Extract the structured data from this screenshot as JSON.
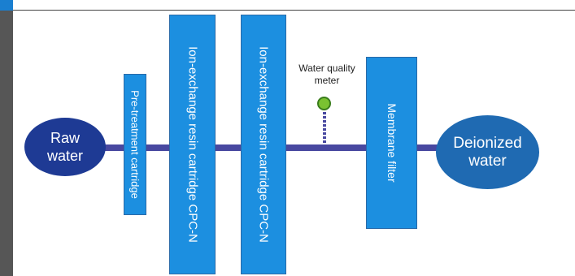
{
  "diagram": {
    "nodes": {
      "raw_water": {
        "line1": "Raw",
        "line2": "water"
      },
      "deionized_water": {
        "line1": "Deionized",
        "line2": "water"
      }
    },
    "components": [
      {
        "label": "Pre-treatment cartridge"
      },
      {
        "label": "Ion-exchange resin cartridge CPC-N"
      },
      {
        "label": "Ion-exchange resin cartridge CPC-N"
      },
      {
        "label": "Membrane filter"
      }
    ],
    "meter": {
      "line1": "Water quality",
      "line2": "meter"
    }
  },
  "colors": {
    "pipe": "#4848a0",
    "box": "#1c8fe0",
    "raw_water": "#1e3a94",
    "deionized_water": "#1f6ab2",
    "meter": "#7ac231"
  }
}
